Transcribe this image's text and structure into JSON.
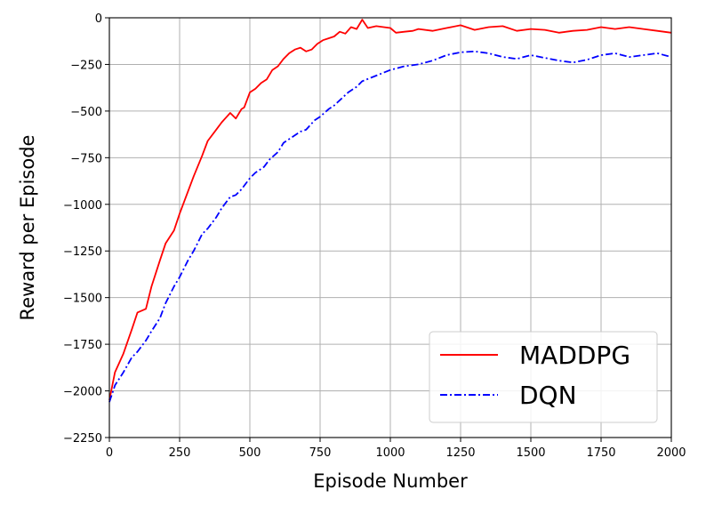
{
  "chart_data": {
    "type": "line",
    "title": "",
    "xlabel": "Episode Number",
    "ylabel": "Reward per Episode",
    "xlim": [
      0,
      2000
    ],
    "ylim": [
      -2250,
      0
    ],
    "xticks": [
      0,
      250,
      500,
      750,
      1000,
      1250,
      1500,
      1750,
      2000
    ],
    "yticks": [
      0,
      -250,
      -500,
      -750,
      -1000,
      -1250,
      -1500,
      -1750,
      -2000,
      -2250
    ],
    "xtick_labels": [
      "0",
      "250",
      "500",
      "750",
      "1000",
      "1250",
      "1500",
      "1750",
      "2000"
    ],
    "ytick_labels": [
      "0",
      "−250",
      "−500",
      "−750",
      "−1000",
      "−1250",
      "−1500",
      "−1750",
      "−2000",
      "−2250"
    ],
    "grid": true,
    "legend_position": "lower-right",
    "series": [
      {
        "name": "MADDPG",
        "color": "#ff0000",
        "style": "solid",
        "x": [
          0,
          20,
          50,
          80,
          100,
          130,
          150,
          180,
          200,
          230,
          250,
          280,
          300,
          330,
          350,
          380,
          400,
          430,
          450,
          470,
          480,
          500,
          520,
          540,
          560,
          580,
          600,
          620,
          640,
          660,
          680,
          700,
          720,
          740,
          760,
          780,
          800,
          820,
          840,
          860,
          880,
          900,
          920,
          950,
          1000,
          1020,
          1050,
          1080,
          1100,
          1150,
          1200,
          1250,
          1300,
          1350,
          1400,
          1450,
          1500,
          1550,
          1600,
          1650,
          1700,
          1750,
          1800,
          1850,
          1900,
          1950,
          2000
        ],
        "y": [
          -2050,
          -1900,
          -1800,
          -1670,
          -1580,
          -1560,
          -1440,
          -1300,
          -1210,
          -1140,
          -1050,
          -930,
          -850,
          -740,
          -660,
          -600,
          -560,
          -510,
          -540,
          -490,
          -480,
          -400,
          -380,
          -350,
          -330,
          -280,
          -260,
          -220,
          -190,
          -170,
          -160,
          -180,
          -170,
          -140,
          -120,
          -110,
          -100,
          -75,
          -85,
          -50,
          -60,
          -10,
          -55,
          -45,
          -55,
          -80,
          -75,
          -70,
          -60,
          -70,
          -55,
          -40,
          -65,
          -50,
          -45,
          -70,
          -60,
          -65,
          -80,
          -70,
          -65,
          -50,
          -60,
          -50,
          -60,
          -70,
          -80
        ]
      },
      {
        "name": "DQN",
        "color": "#0000ff",
        "style": "dashdot",
        "x": [
          0,
          20,
          50,
          80,
          100,
          130,
          150,
          180,
          200,
          230,
          250,
          280,
          300,
          330,
          350,
          380,
          400,
          430,
          450,
          470,
          500,
          520,
          550,
          570,
          600,
          620,
          650,
          680,
          700,
          730,
          750,
          780,
          800,
          850,
          880,
          900,
          950,
          1000,
          1050,
          1100,
          1150,
          1200,
          1250,
          1300,
          1350,
          1400,
          1450,
          1500,
          1550,
          1600,
          1650,
          1700,
          1750,
          1800,
          1850,
          1900,
          1950,
          2000
        ],
        "y": [
          -2060,
          -1970,
          -1900,
          -1820,
          -1790,
          -1730,
          -1680,
          -1610,
          -1530,
          -1440,
          -1390,
          -1300,
          -1250,
          -1160,
          -1130,
          -1070,
          -1020,
          -960,
          -950,
          -920,
          -860,
          -830,
          -800,
          -760,
          -720,
          -670,
          -640,
          -610,
          -600,
          -550,
          -530,
          -490,
          -470,
          -400,
          -370,
          -340,
          -310,
          -280,
          -260,
          -250,
          -230,
          -200,
          -185,
          -180,
          -190,
          -210,
          -220,
          -200,
          -215,
          -230,
          -240,
          -225,
          -200,
          -190,
          -210,
          -200,
          -190,
          -210
        ]
      }
    ]
  }
}
